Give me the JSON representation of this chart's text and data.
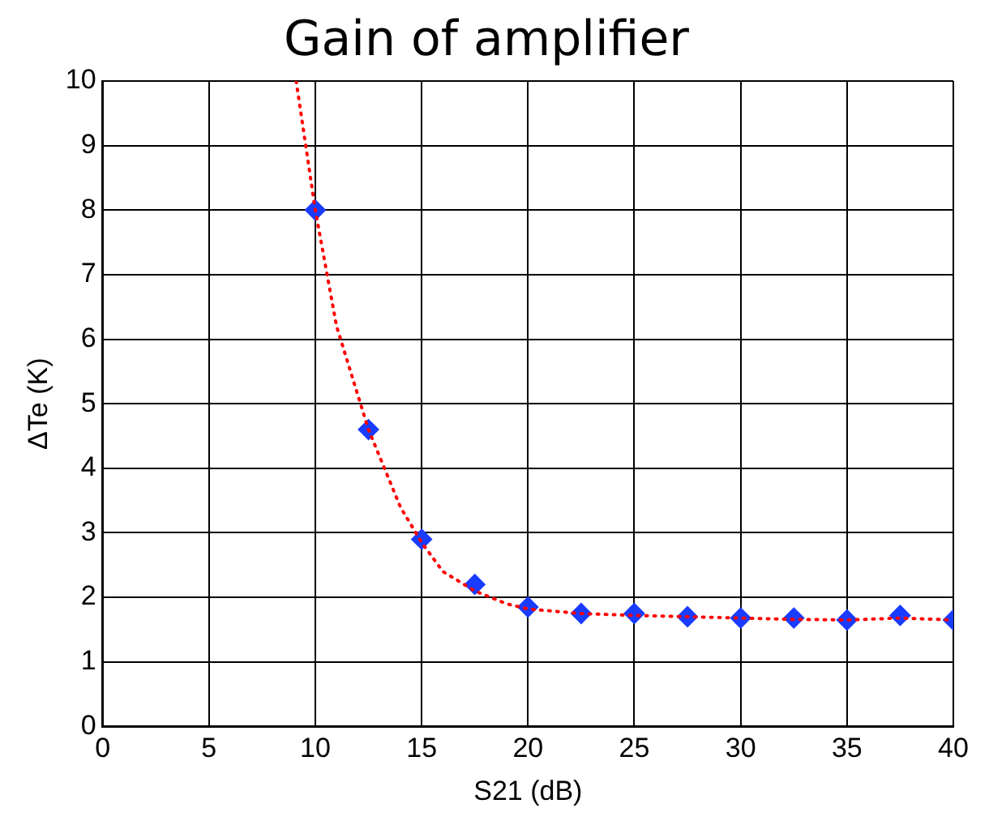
{
  "chart_data": {
    "type": "scatter",
    "title": "Gain of amplifier",
    "xlabel": "S21 (dB)",
    "ylabel": "ΔTe (K)",
    "xlim": [
      0,
      40
    ],
    "ylim": [
      0,
      10
    ],
    "xticks": [
      0,
      5,
      10,
      15,
      20,
      25,
      30,
      35,
      40
    ],
    "yticks": [
      0,
      1,
      2,
      3,
      4,
      5,
      6,
      7,
      8,
      9,
      10
    ],
    "grid": true,
    "legend": false,
    "series": [
      {
        "type": "line",
        "color": "#ff0000",
        "line_style": "dotted",
        "marker": "none",
        "x": [
          9.1,
          10,
          11,
          12.5,
          14,
          15,
          16,
          17.5,
          19,
          20,
          22.5,
          25,
          27.5,
          30,
          32.5,
          35,
          37.5,
          40
        ],
        "values": [
          10,
          8,
          6.2,
          4.6,
          3.4,
          2.85,
          2.4,
          2.1,
          1.9,
          1.82,
          1.75,
          1.72,
          1.7,
          1.68,
          1.66,
          1.65,
          1.68,
          1.65
        ]
      },
      {
        "type": "scatter",
        "color": "#1a3cff",
        "marker": "diamond",
        "x": [
          10,
          12.5,
          15,
          17.5,
          20,
          22.5,
          25,
          27.5,
          30,
          32.5,
          35,
          37.5,
          40
        ],
        "values": [
          8.0,
          4.6,
          2.9,
          2.2,
          1.85,
          1.75,
          1.75,
          1.7,
          1.68,
          1.68,
          1.65,
          1.72,
          1.65
        ]
      }
    ]
  }
}
